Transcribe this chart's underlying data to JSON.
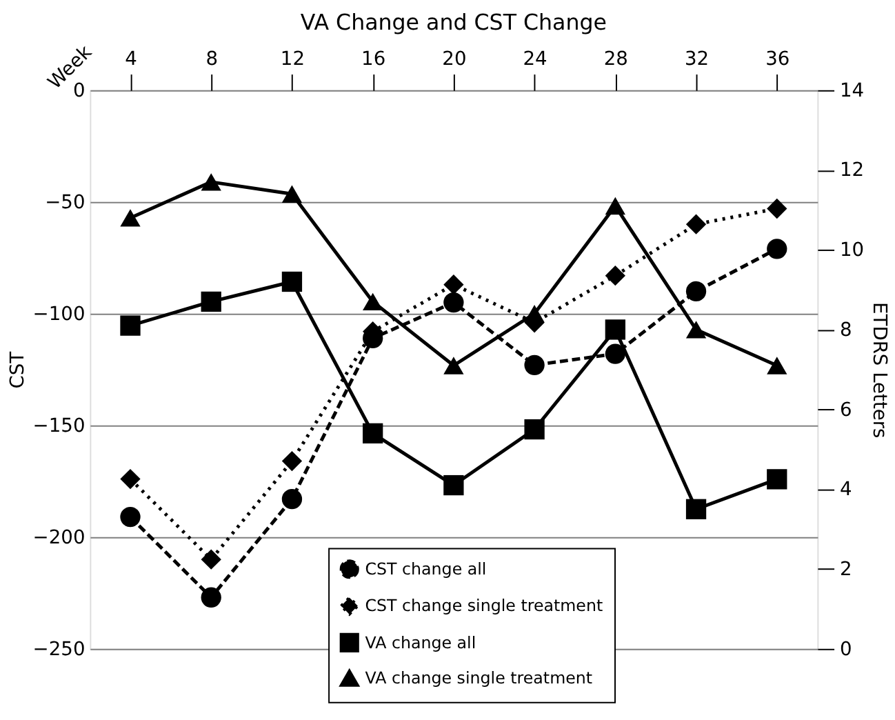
{
  "chart_data": {
    "type": "line",
    "title": "VA Change and CST Change",
    "xlabel": "Week",
    "ylabel": "CST",
    "y2label": "ETDRS Letters",
    "categories": [
      "4",
      "8",
      "12",
      "16",
      "20",
      "24",
      "28",
      "32",
      "36"
    ],
    "series": [
      {
        "name": "CST change all",
        "color": "#000000",
        "marker": "circle",
        "line_style": "dashed",
        "values": [
          -191,
          -227,
          -183,
          -111,
          -95,
          -123,
          -118,
          -90,
          -71
        ]
      },
      {
        "name": "CST change single treatment",
        "color": "#000000",
        "marker": "diamond",
        "line_style": "dotted",
        "values": [
          -174,
          -210,
          -166,
          -108,
          -87,
          -104,
          -83,
          -60,
          -53
        ]
      },
      {
        "name": "VA change all",
        "color": "#000000",
        "marker": "square",
        "line_style": "solid",
        "axis": "y2",
        "values": [
          8.1,
          8.7,
          9.2,
          5.4,
          4.1,
          5.5,
          8.0,
          3.5,
          4.25
        ]
      },
      {
        "name": "VA change single treatment",
        "color": "#000000",
        "marker": "triangle",
        "line_style": "solid",
        "axis": "y2",
        "values": [
          10.8,
          11.7,
          11.4,
          8.7,
          7.1,
          8.4,
          11.1,
          8.0,
          7.1
        ]
      }
    ],
    "ylim": [
      -250,
      0
    ],
    "yticks": [
      -250,
      -200,
      -150,
      -100,
      -50,
      0
    ],
    "y2lim": [
      0,
      14
    ],
    "y2ticks": [
      0,
      2,
      4,
      6,
      8,
      10,
      12,
      14
    ],
    "grid": "y",
    "legend": "bottom"
  }
}
